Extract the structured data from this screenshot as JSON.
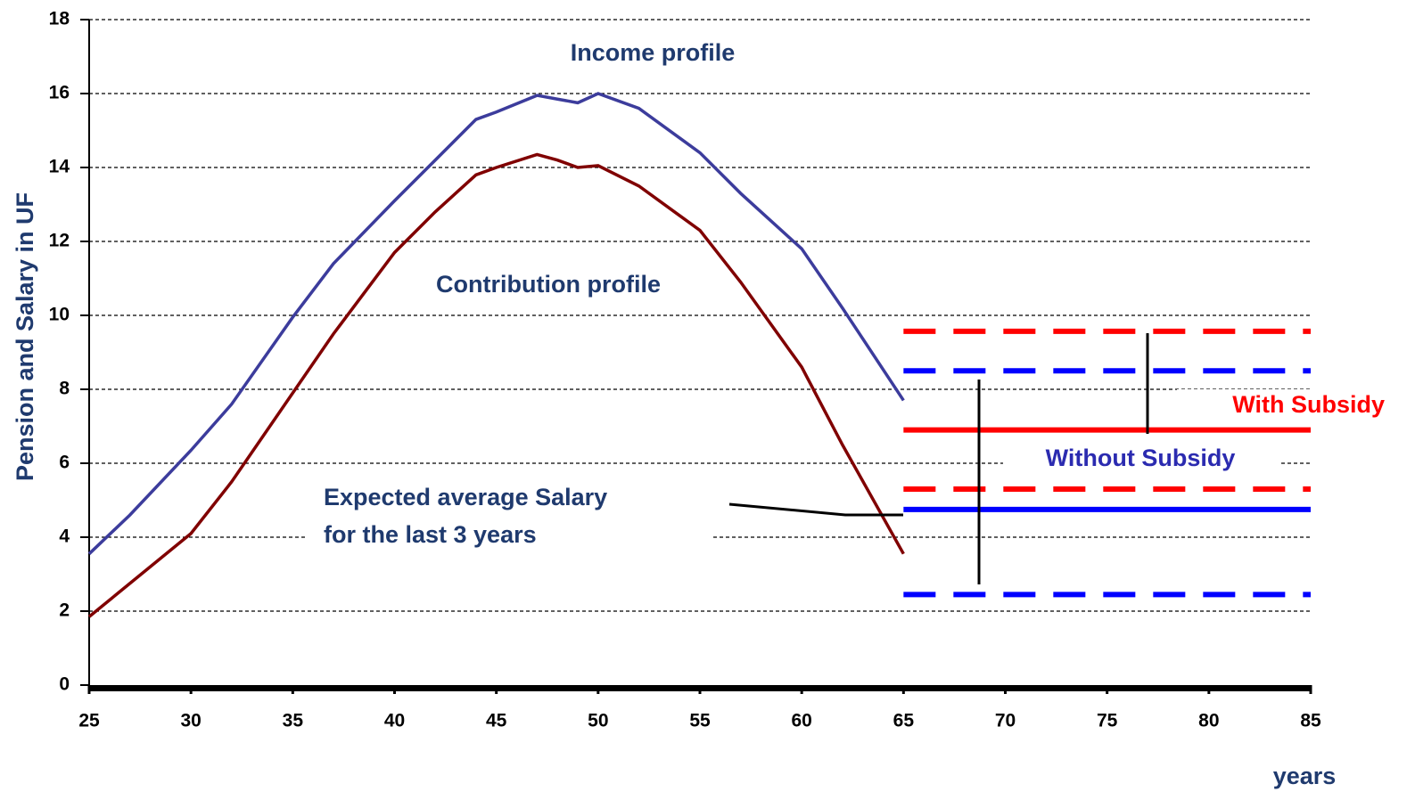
{
  "chart_data": {
    "type": "line",
    "y_label": "Pension and Salary in UF",
    "x_label": "years",
    "annotations": [
      "Income profile",
      "Contribution profile",
      "Expected average Salary",
      "for the last 3 years"
    ],
    "x": [
      25,
      27,
      30,
      32,
      35,
      37,
      40,
      42,
      44,
      45,
      47,
      48,
      49,
      50,
      52,
      55,
      57,
      60,
      62,
      65
    ],
    "series": [
      {
        "name": "Income profile",
        "color": "#3c3c9c",
        "values": [
          3.55,
          4.6,
          6.35,
          7.6,
          9.95,
          11.4,
          13.1,
          14.2,
          15.3,
          15.5,
          15.95,
          15.85,
          15.75,
          16.0,
          15.6,
          14.4,
          13.3,
          11.8,
          10.2,
          7.7
        ]
      },
      {
        "name": "Contribution profile",
        "color": "#800000",
        "values": [
          1.85,
          2.75,
          4.1,
          5.5,
          7.9,
          9.5,
          11.7,
          12.8,
          13.8,
          14.0,
          14.35,
          14.2,
          14.0,
          14.05,
          13.5,
          12.3,
          10.9,
          8.6,
          6.5,
          3.55
        ]
      }
    ],
    "bands_x": [
      65,
      85
    ],
    "bands": [
      {
        "name": "With Subsidy",
        "color": "#ff0000",
        "low": 5.3,
        "mid": 6.9,
        "high": 9.57
      },
      {
        "name": "Without Subsidy",
        "color": "#0000ff",
        "low": 2.45,
        "mid": 4.75,
        "high": 8.5
      }
    ],
    "xlim": [
      25,
      85
    ],
    "xticks": [
      25,
      30,
      35,
      40,
      45,
      50,
      55,
      60,
      65,
      70,
      75,
      80,
      85
    ],
    "ylim": [
      0,
      18
    ],
    "yticks": [
      0,
      2,
      4,
      6,
      8,
      10,
      12,
      14,
      16,
      18
    ],
    "grid": true
  }
}
